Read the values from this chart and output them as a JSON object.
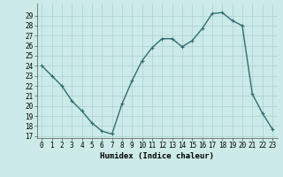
{
  "x": [
    0,
    1,
    2,
    3,
    4,
    5,
    6,
    7,
    8,
    9,
    10,
    11,
    12,
    13,
    14,
    15,
    16,
    17,
    18,
    19,
    20,
    21,
    22,
    23
  ],
  "y": [
    24.0,
    23.0,
    22.0,
    20.5,
    19.5,
    18.3,
    17.5,
    17.2,
    20.2,
    22.5,
    24.5,
    25.8,
    26.7,
    26.7,
    25.9,
    26.5,
    27.7,
    29.2,
    29.3,
    28.5,
    28.0,
    21.2,
    19.3,
    17.7
  ],
  "line_color": "#2d6e6e",
  "marker": "+",
  "marker_size": 3,
  "bg_color": "#cceae8",
  "grid_color": "#aacfcd",
  "xlabel": "Humidex (Indice chaleur)",
  "ylim_min": 17,
  "ylim_max": 30,
  "xlim_min": -0.5,
  "xlim_max": 23.5,
  "yticks": [
    17,
    18,
    19,
    20,
    21,
    22,
    23,
    24,
    25,
    26,
    27,
    28,
    29
  ],
  "tick_fontsize": 5.5,
  "xlabel_fontsize": 6.5,
  "line_width": 1.0
}
